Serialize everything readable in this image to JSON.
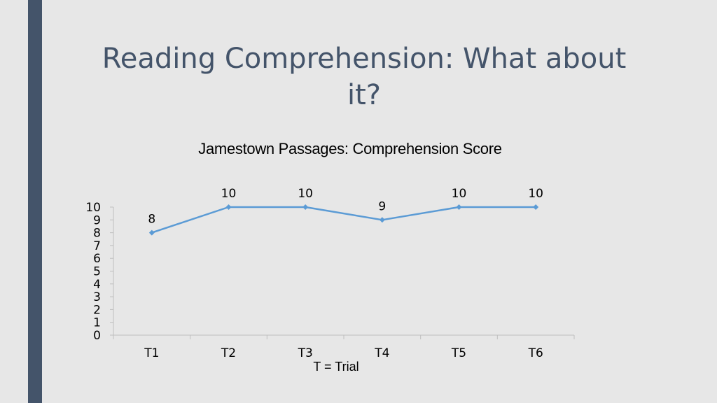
{
  "slide": {
    "title": "Reading Comprehension: What about it?",
    "accent_color": "#44546a",
    "background_color": "#e7e7e7"
  },
  "chart_data": {
    "type": "line",
    "title": "Jamestown Passages: Comprehension Score",
    "xlabel": "T = Trial",
    "ylabel": "",
    "categories": [
      "T1",
      "T2",
      "T3",
      "T4",
      "T5",
      "T6"
    ],
    "series": [
      {
        "values": [
          8,
          10,
          10,
          9,
          10,
          10
        ],
        "color": "#5b9bd5"
      }
    ],
    "ylim": [
      0,
      10
    ],
    "yticks": [
      0,
      1,
      2,
      3,
      4,
      5,
      6,
      7,
      8,
      9,
      10
    ],
    "data_labels": true,
    "grid": false,
    "legend": "none"
  }
}
